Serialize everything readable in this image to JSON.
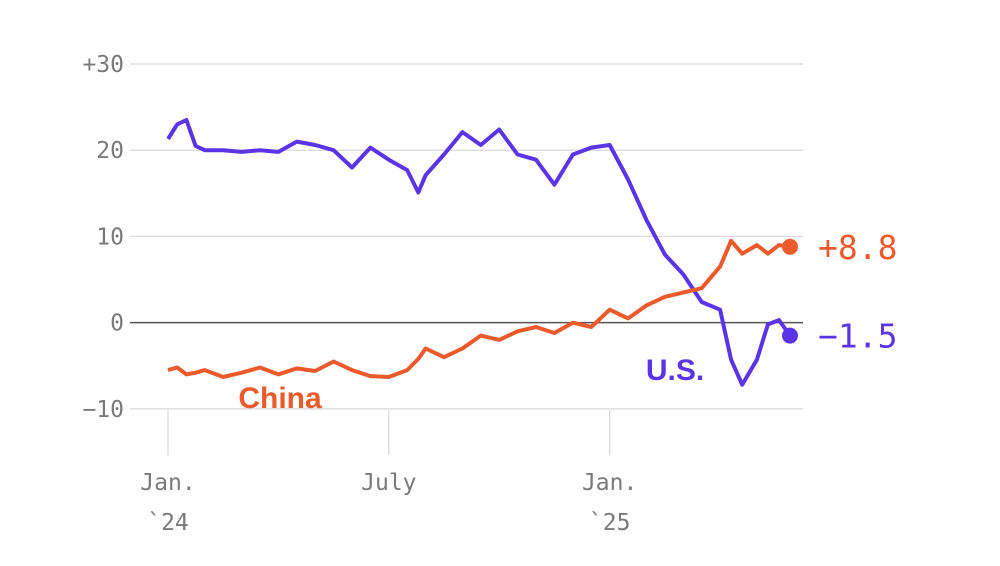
{
  "chart_data": {
    "type": "line",
    "x": [
      0,
      0.25,
      0.5,
      0.75,
      1,
      1.5,
      2,
      2.5,
      3,
      3.5,
      4,
      4.5,
      5,
      5.5,
      6,
      6.5,
      6.8,
      7,
      7.5,
      8,
      8.5,
      9,
      9.5,
      10,
      10.5,
      11,
      11.5,
      12,
      12.5,
      13,
      13.5,
      14,
      14.5,
      15,
      15.3,
      15.6,
      16,
      16.3,
      16.6,
      16.9
    ],
    "xlim": [
      0,
      16.9
    ],
    "xticks": [
      {
        "value": 0,
        "label": [
          "Jan.",
          "`24"
        ]
      },
      {
        "value": 6,
        "label": [
          "July"
        ]
      },
      {
        "value": 12,
        "label": [
          "Jan.",
          "`25"
        ]
      }
    ],
    "ylim": [
      -15,
      30
    ],
    "yticks": [
      {
        "value": 30,
        "label": "+30"
      },
      20,
      10,
      0,
      {
        "value": -10,
        "label": "−10"
      }
    ],
    "grid": true,
    "series": [
      {
        "name": "U.S.",
        "color": "#5b34e6",
        "values": [
          21.3,
          23,
          23.5,
          20.5,
          20,
          20,
          19.8,
          20,
          19.8,
          21,
          20.6,
          20,
          18,
          20.3,
          18.9,
          17.7,
          15.1,
          17.1,
          19.5,
          22.1,
          20.6,
          22.4,
          19.5,
          18.9,
          16,
          19.5,
          20.3,
          20.6,
          16.6,
          11.9,
          7.9,
          5.6,
          2.4,
          1.5,
          -4.3,
          -7.2,
          -4.3,
          -0.2,
          0.3,
          -1.5
        ],
        "value_labels": [
          null,
          null,
          null,
          null,
          null,
          null,
          null,
          null,
          null,
          null,
          null,
          null,
          null,
          null,
          null,
          null,
          null,
          null,
          null,
          null,
          null,
          null,
          null,
          null,
          null,
          null,
          null,
          null,
          null,
          null,
          null,
          null,
          null,
          null,
          null,
          null,
          null,
          null,
          null,
          "−1.5"
        ]
      },
      {
        "name": "China",
        "color": "#ea5a2a",
        "values": [
          -5.5,
          -5.2,
          -6,
          -5.8,
          -5.5,
          -6.3,
          -5.8,
          -5.2,
          -6,
          -5.3,
          -5.6,
          -4.5,
          -5.5,
          -6.2,
          -6.3,
          -5.5,
          -4.2,
          -3,
          -4,
          -3,
          -1.5,
          -2,
          -1,
          -0.5,
          -1.2,
          0,
          -0.5,
          1.5,
          0.5,
          2,
          3,
          3.5,
          4,
          6.5,
          9.5,
          8,
          9,
          8,
          9,
          8.8
        ],
        "value_labels": [
          null,
          null,
          null,
          null,
          null,
          null,
          null,
          null,
          null,
          null,
          null,
          null,
          null,
          null,
          null,
          null,
          null,
          null,
          null,
          null,
          null,
          null,
          null,
          null,
          null,
          null,
          null,
          null,
          null,
          null,
          null,
          null,
          null,
          null,
          null,
          null,
          null,
          null,
          null,
          "+8.8"
        ]
      }
    ]
  }
}
